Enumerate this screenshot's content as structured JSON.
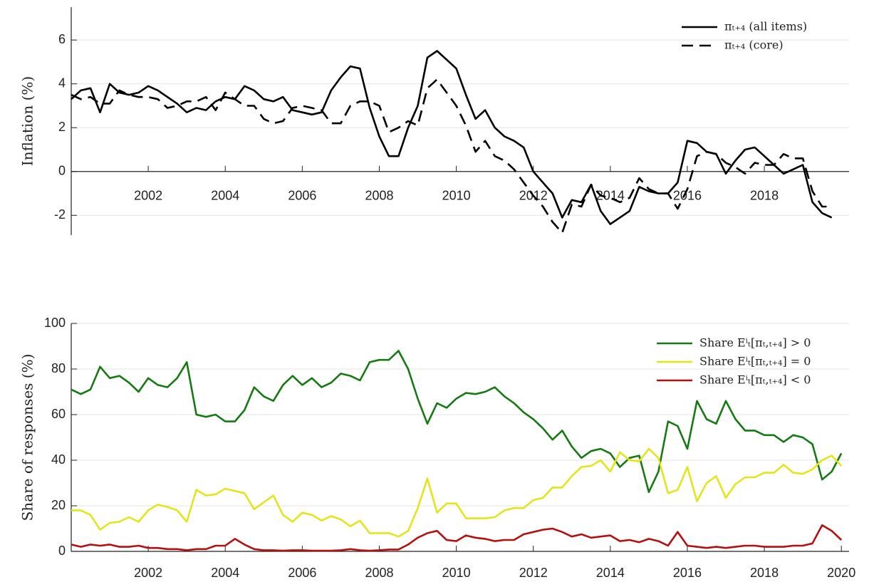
{
  "chart_data": [
    {
      "type": "line",
      "y_label": "Inflation (%)",
      "legend": "upper right",
      "grid": true,
      "xlim": [
        2000,
        2020.2
      ],
      "xticks": [
        2002,
        2004,
        2006,
        2008,
        2010,
        2012,
        2014,
        2016,
        2018
      ],
      "ylim": [
        -2.9,
        7.5
      ],
      "yticks": [
        6,
        4,
        2,
        0,
        -2
      ],
      "x": [
        2000,
        2000.25,
        2000.5,
        2000.75,
        2001,
        2001.25,
        2001.5,
        2001.75,
        2002,
        2002.25,
        2002.5,
        2002.75,
        2003,
        2003.25,
        2003.5,
        2003.75,
        2004,
        2004.25,
        2004.5,
        2004.75,
        2005,
        2005.25,
        2005.5,
        2005.75,
        2006,
        2006.25,
        2006.5,
        2006.75,
        2007,
        2007.25,
        2007.5,
        2007.75,
        2008,
        2008.25,
        2008.5,
        2008.75,
        2009,
        2009.25,
        2009.5,
        2009.75,
        2010,
        2010.25,
        2010.5,
        2010.75,
        2011,
        2011.25,
        2011.5,
        2011.75,
        2012,
        2012.25,
        2012.5,
        2012.75,
        2013,
        2013.25,
        2013.5,
        2013.75,
        2014,
        2014.25,
        2014.5,
        2014.75,
        2015,
        2015.25,
        2015.5,
        2015.75,
        2016,
        2016.25,
        2016.5,
        2016.75,
        2017,
        2017.25,
        2017.5,
        2017.75,
        2018,
        2018.25,
        2018.5,
        2018.75,
        2019,
        2019.25,
        2019.5,
        2019.75
      ],
      "series": [
        {
          "name": "πₜ₊₄ (all items)",
          "color": "#000000",
          "style": "solid",
          "values": [
            3.3,
            3.7,
            3.8,
            2.7,
            4.0,
            3.6,
            3.5,
            3.6,
            3.9,
            3.7,
            3.4,
            3.1,
            2.7,
            2.9,
            2.8,
            3.2,
            3.4,
            3.3,
            3.9,
            3.7,
            3.3,
            3.2,
            3.4,
            2.8,
            2.7,
            2.6,
            2.7,
            3.7,
            4.3,
            4.8,
            4.7,
            2.9,
            1.6,
            0.7,
            0.7,
            2.0,
            3.0,
            5.2,
            5.5,
            5.1,
            4.7,
            3.5,
            2.4,
            2.8,
            2.0,
            1.6,
            1.4,
            1.1,
            0.0,
            -0.5,
            -1.0,
            -2.1,
            -1.3,
            -1.4,
            -0.6,
            -1.8,
            -2.4,
            -2.1,
            -1.8,
            -0.7,
            -0.9,
            -1.0,
            -1.0,
            -0.5,
            1.4,
            1.3,
            0.9,
            0.8,
            -0.1,
            0.5,
            1.0,
            1.1,
            0.7,
            0.3,
            -0.1,
            0.1,
            0.3,
            -1.4,
            -1.9,
            -2.1
          ]
        },
        {
          "name": "πₜ₊₄ (core)",
          "color": "#000000",
          "style": "dashed",
          "values": [
            3.5,
            3.3,
            3.4,
            3.1,
            3.1,
            3.7,
            3.5,
            3.4,
            3.4,
            3.3,
            2.9,
            3.0,
            3.2,
            3.2,
            3.4,
            2.8,
            3.6,
            3.3,
            3.0,
            3.0,
            2.4,
            2.2,
            2.3,
            2.9,
            3.0,
            2.9,
            2.8,
            2.2,
            2.2,
            3.0,
            3.2,
            3.2,
            3.0,
            1.8,
            2.0,
            2.3,
            2.1,
            3.8,
            4.2,
            3.6,
            3.0,
            2.1,
            0.9,
            1.4,
            0.7,
            0.5,
            0.1,
            -0.5,
            -1.1,
            -1.6,
            -2.3,
            -2.8,
            -1.5,
            -1.6,
            -0.6,
            -1.1,
            -1.2,
            -1.4,
            -1.2,
            -0.3,
            -0.8,
            -1.0,
            -1.0,
            -1.7,
            -0.8,
            0.7,
            0.9,
            0.8,
            0.4,
            0.2,
            -0.1,
            0.4,
            0.3,
            0.3,
            0.8,
            0.6,
            0.6,
            -0.9,
            -1.6,
            -1.6
          ]
        }
      ]
    },
    {
      "type": "line",
      "y_label": "Share of responses (%)",
      "legend": "upper right",
      "grid": true,
      "xlim": [
        2000,
        2020.2
      ],
      "xticks": [
        2002,
        2004,
        2006,
        2008,
        2010,
        2012,
        2014,
        2016,
        2018,
        2020
      ],
      "ylim": [
        0,
        100
      ],
      "yticks": [
        0,
        20,
        40,
        60,
        80,
        100
      ],
      "x": [
        2000,
        2000.25,
        2000.5,
        2000.75,
        2001,
        2001.25,
        2001.5,
        2001.75,
        2002,
        2002.25,
        2002.5,
        2002.75,
        2003,
        2003.25,
        2003.5,
        2003.75,
        2004,
        2004.25,
        2004.5,
        2004.75,
        2005,
        2005.25,
        2005.5,
        2005.75,
        2006,
        2006.25,
        2006.5,
        2006.75,
        2007,
        2007.25,
        2007.5,
        2007.75,
        2008,
        2008.25,
        2008.5,
        2008.75,
        2009,
        2009.25,
        2009.5,
        2009.75,
        2010,
        2010.25,
        2010.5,
        2010.75,
        2011,
        2011.25,
        2011.5,
        2011.75,
        2012,
        2012.25,
        2012.5,
        2012.75,
        2013,
        2013.25,
        2013.5,
        2013.75,
        2014,
        2014.25,
        2014.5,
        2014.75,
        2015,
        2015.25,
        2015.5,
        2015.75,
        2016,
        2016.25,
        2016.5,
        2016.75,
        2017,
        2017.25,
        2017.5,
        2017.75,
        2018,
        2018.25,
        2018.5,
        2018.75,
        2019,
        2019.25,
        2019.5,
        2019.75,
        2020
      ],
      "series": [
        {
          "name": "Share Eⁱₜ[πₜ,ₜ₊₄] > 0",
          "color": "#157a12",
          "style": "solid",
          "values": [
            71,
            69,
            71,
            81,
            76,
            77,
            74,
            70,
            76,
            73,
            72,
            76,
            83,
            60,
            59,
            60,
            57,
            57,
            62,
            72,
            68,
            66,
            73,
            77,
            73,
            76,
            72,
            74,
            78,
            77,
            75,
            83,
            84,
            84,
            88,
            80,
            67,
            56,
            65,
            63,
            67,
            69.5,
            69,
            70,
            72,
            68,
            65,
            61,
            58,
            54,
            49,
            53,
            46,
            41,
            44,
            45,
            43,
            37,
            41,
            42,
            26,
            35,
            57,
            55,
            45,
            66,
            58,
            56,
            66,
            58,
            53,
            53,
            51,
            51,
            48,
            51,
            50,
            47,
            31.5,
            35,
            43
          ]
        },
        {
          "name": "Share Eⁱₜ[πₜ,ₜ₊₄] = 0",
          "color": "#e4e41a",
          "style": "solid",
          "values": [
            18,
            18,
            16,
            9.5,
            12.5,
            13,
            15,
            13,
            18,
            20.5,
            19.5,
            18,
            13,
            27,
            24.5,
            25,
            27.5,
            26.5,
            25.5,
            18.5,
            21.5,
            24.5,
            16,
            13,
            17,
            16,
            13.5,
            15.5,
            14,
            11,
            13.5,
            8,
            8,
            8,
            6.5,
            9,
            19,
            32,
            17,
            21,
            21,
            14.5,
            14.5,
            14.5,
            15,
            18,
            19,
            19,
            22.5,
            23.5,
            28,
            28,
            33,
            37,
            37.5,
            40,
            35,
            43.5,
            40,
            39.5,
            45,
            41,
            25.5,
            27,
            37,
            22,
            30,
            33,
            23.5,
            29.5,
            32.5,
            32.5,
            34.5,
            34.5,
            38,
            34.5,
            34,
            36,
            40,
            42,
            37.5
          ]
        },
        {
          "name": "Share Eⁱₜ[πₜ,ₜ₊₄] < 0",
          "color": "#b5100f",
          "style": "solid",
          "values": [
            3,
            2,
            3,
            2.5,
            3,
            2,
            2,
            2.5,
            1.5,
            1.5,
            1,
            1,
            0.5,
            1,
            1,
            2.5,
            2.5,
            5.5,
            3,
            1,
            0.5,
            0.5,
            0.3,
            0.5,
            0.5,
            0.3,
            0.3,
            0.3,
            0.5,
            1,
            0.5,
            0.3,
            0.5,
            0.8,
            0.8,
            3,
            6,
            8,
            9,
            5,
            4.5,
            7,
            6,
            5.5,
            4.5,
            5,
            5,
            7.5,
            8.5,
            9.5,
            10,
            8.5,
            6.5,
            7.5,
            6,
            6.5,
            7,
            4.5,
            5,
            4,
            5.5,
            4.5,
            2.5,
            8.5,
            2.5,
            2,
            1.5,
            2,
            1.5,
            2,
            2.5,
            2.5,
            2,
            2,
            2,
            2.5,
            2.5,
            3.5,
            11.5,
            9,
            5
          ]
        }
      ]
    }
  ]
}
